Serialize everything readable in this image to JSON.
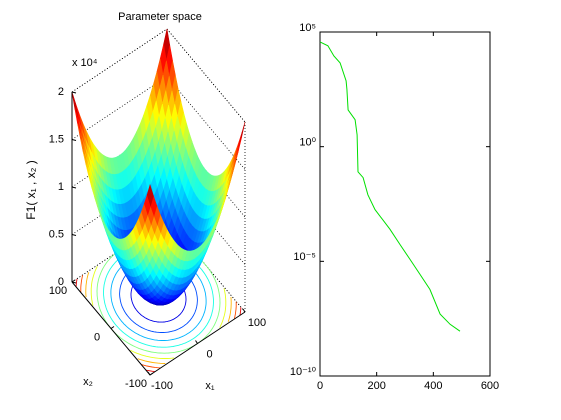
{
  "chart_data": [
    {
      "type": "surface",
      "title": "Parameter space",
      "zlabel": "F1( x₁ , x₂ )",
      "xlabel": "x₁",
      "ylabel": "x₂",
      "z_exponent_label": "x 10⁴",
      "colormap": "jet",
      "xlim": [
        -100,
        100
      ],
      "ylim": [
        -100,
        100
      ],
      "zlim": [
        0,
        20000
      ],
      "xticks": [
        -100,
        0,
        100
      ],
      "yticks": [
        -100,
        0,
        100
      ],
      "zticks": [
        {
          "value": 0,
          "label": "0"
        },
        {
          "value": 5000,
          "label": "0.5"
        },
        {
          "value": 10000,
          "label": "1"
        },
        {
          "value": 15000,
          "label": "1.5"
        },
        {
          "value": 20000,
          "label": "2"
        }
      ]
    },
    {
      "type": "line",
      "log_y": true,
      "color": "#00e000",
      "x": [
        0,
        28,
        49,
        71,
        92,
        95,
        99,
        124,
        131,
        134,
        152,
        169,
        194,
        247,
        282,
        318,
        353,
        388,
        424,
        459,
        494
      ],
      "values": [
        37000,
        25000,
        9000,
        4500,
        740,
        320,
        40,
        15,
        3.3,
        0.08,
        0.045,
        0.008,
        0.0018,
        0.00025,
        5.5e-05,
        1.2e-05,
        2.7e-06,
        6e-07,
        5e-08,
        1.8e-08,
        9e-09
      ],
      "xlim": [
        0,
        600
      ],
      "xticks": [
        0,
        200,
        400,
        600
      ],
      "ylim": [
        1e-10,
        100000
      ],
      "yticks": [
        {
          "value": 1e-10,
          "label": "10⁻¹⁰"
        },
        {
          "value": 1e-05,
          "label": "10⁻⁵"
        },
        {
          "value": 1,
          "label": "10⁰"
        },
        {
          "value": 100000,
          "label": "10⁵"
        }
      ]
    }
  ]
}
